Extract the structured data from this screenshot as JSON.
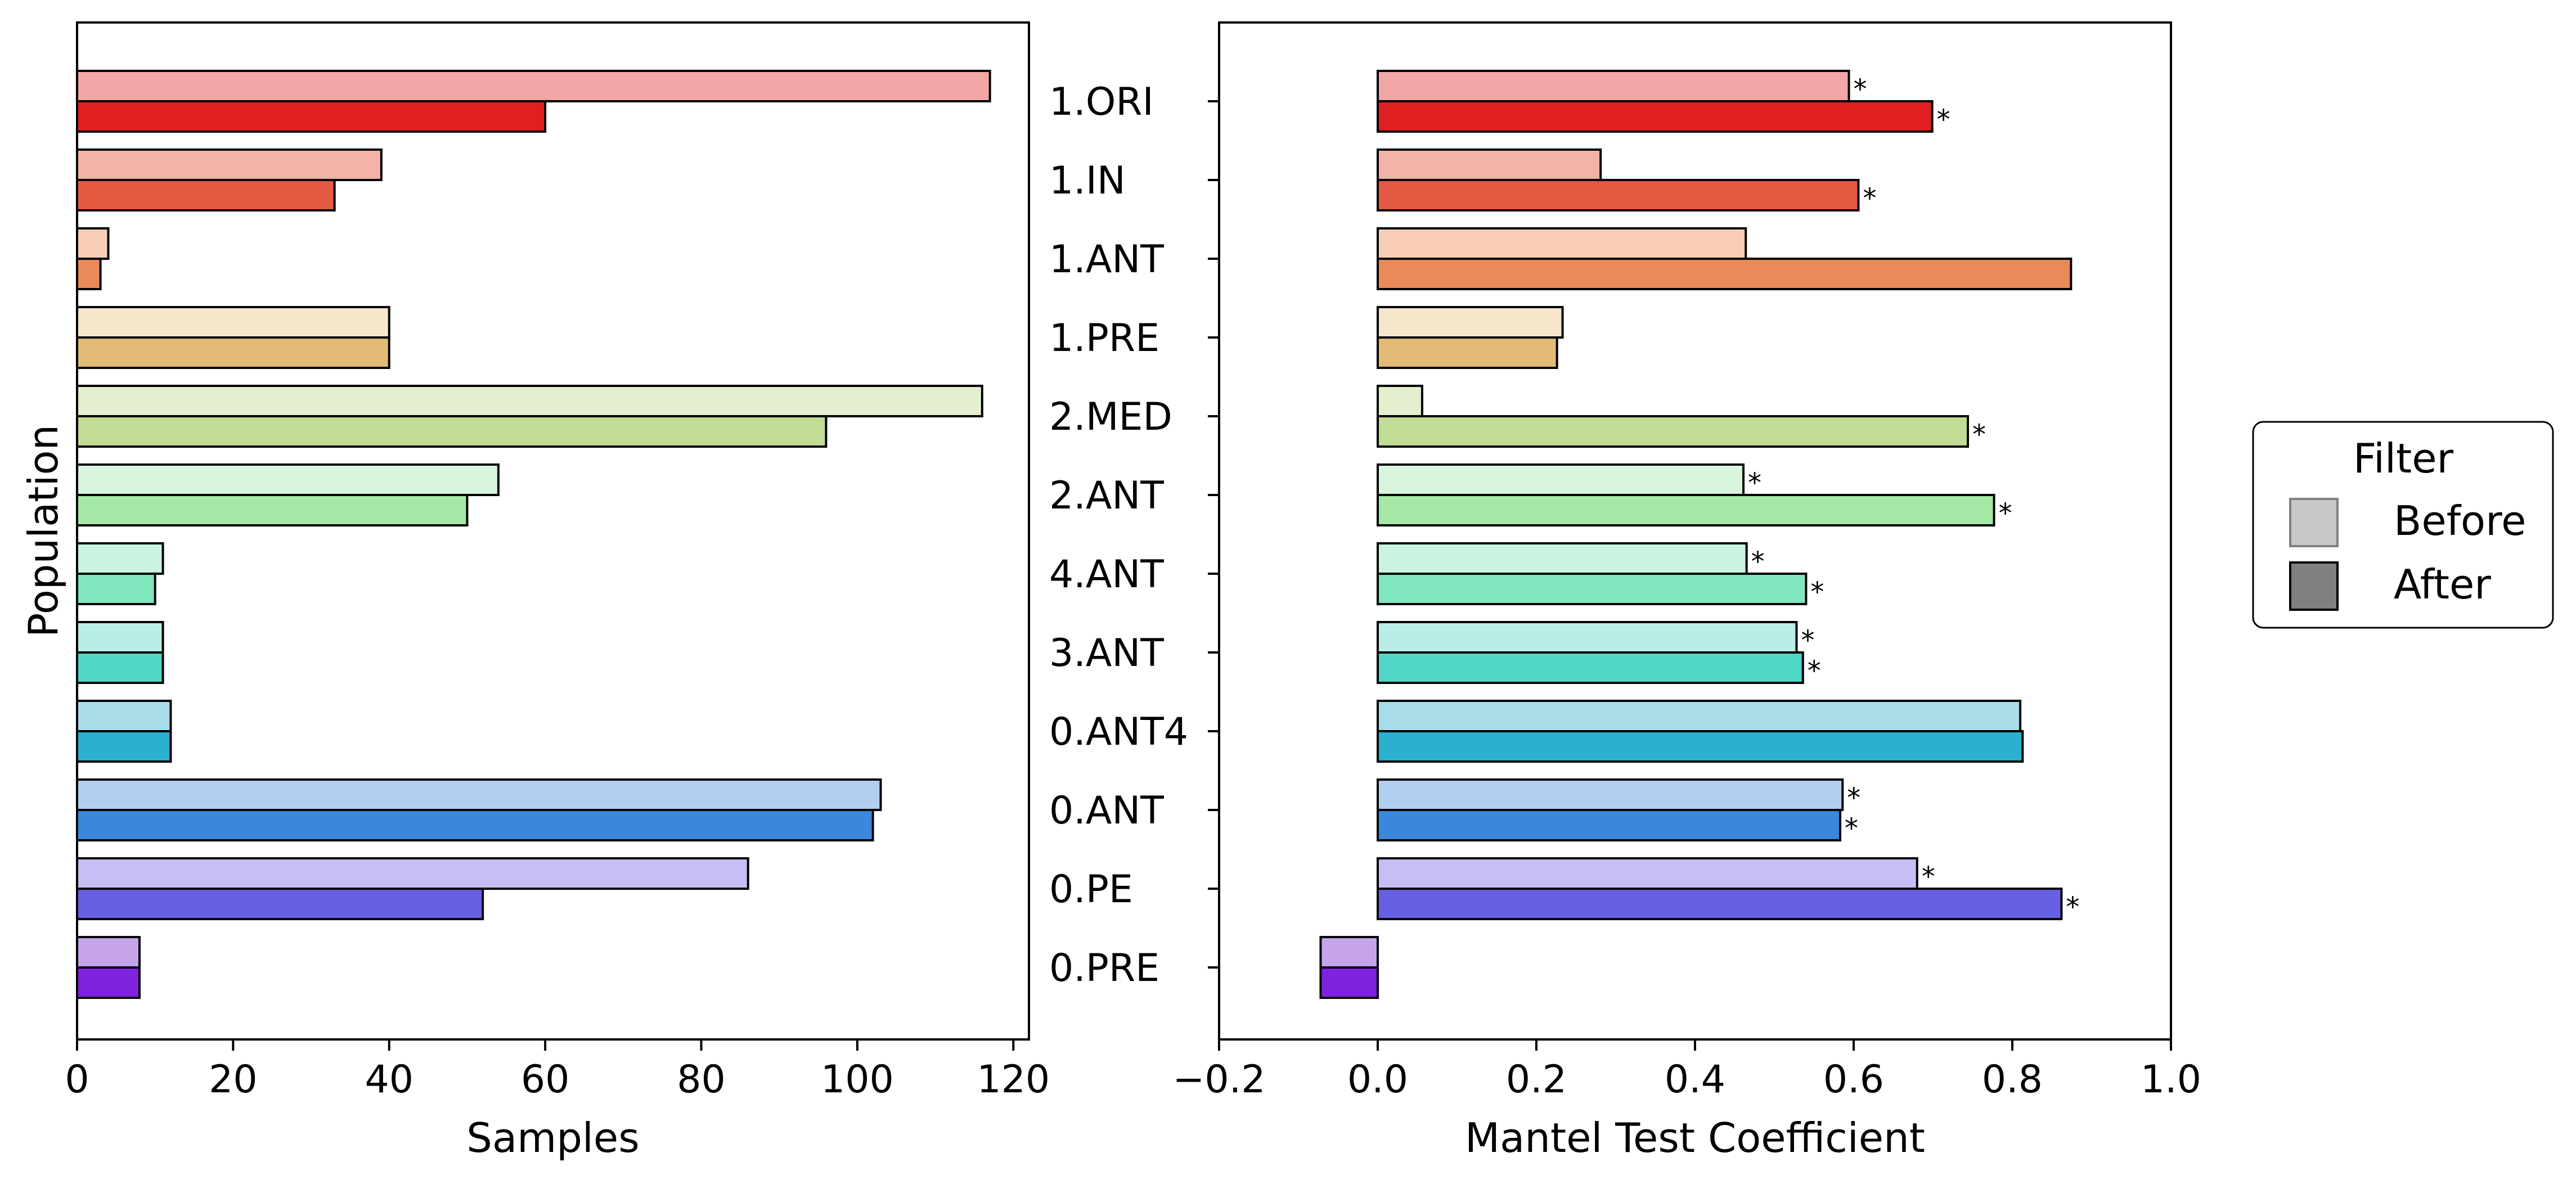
{
  "chart_data": {
    "type": "bar",
    "orientation": "horizontal",
    "categories": [
      "1.ORI",
      "1.IN",
      "1.ANT",
      "1.PRE",
      "2.MED",
      "2.ANT",
      "4.ANT",
      "3.ANT",
      "0.ANT4",
      "0.ANT",
      "0.PE",
      "0.PRE"
    ],
    "ylabel": "Population",
    "legend": {
      "title": "Filter",
      "placement": "right",
      "entries": [
        {
          "label": "Before",
          "color": "#c8c8c8"
        },
        {
          "label": "After",
          "color": "#808080"
        }
      ]
    },
    "colors": {
      "before": [
        "#f2a6a6",
        "#f3b3a9",
        "#f8cdb8",
        "#f6e6cc",
        "#e3efcf",
        "#d8f4dc",
        "#caf4e1",
        "#b8eee6",
        "#a9dde9",
        "#b2cff0",
        "#c5bff5",
        "#c6a4ea"
      ],
      "after": [
        "#e02020",
        "#e55a42",
        "#ea8a58",
        "#e2bb77",
        "#c0dc95",
        "#a5e8a6",
        "#7fe6bd",
        "#4fd6c4",
        "#2cb0cf",
        "#3b87dc",
        "#6860e4",
        "#7f22df"
      ]
    },
    "panels": [
      {
        "xlabel": "Samples",
        "xlim": [
          0,
          122
        ],
        "xticks": [
          "0",
          "20",
          "40",
          "60",
          "80",
          "100",
          "120"
        ],
        "xtick_values": [
          0,
          20,
          40,
          60,
          80,
          100,
          120
        ],
        "series": [
          {
            "name": "Before",
            "values": [
              117,
              39,
              4,
              40,
              116,
              54,
              11,
              11,
              12,
              103,
              86,
              8
            ]
          },
          {
            "name": "After",
            "values": [
              60,
              33,
              3,
              40,
              96,
              50,
              10,
              11,
              12,
              102,
              52,
              8
            ]
          }
        ]
      },
      {
        "xlabel": "Mantel Test Coefficient",
        "xlim": [
          -0.2,
          1.0
        ],
        "xticks": [
          "−0.2",
          "0.0",
          "0.2",
          "0.4",
          "0.6",
          "0.8",
          "1.0"
        ],
        "xtick_values": [
          -0.2,
          0,
          0.2,
          0.4,
          0.6,
          0.8,
          1.0
        ],
        "series": [
          {
            "name": "Before",
            "values": [
              0.594,
              0.281,
              0.464,
              0.233,
              0.056,
              0.461,
              0.465,
              0.528,
              0.81,
              0.586,
              0.68,
              -0.072
            ],
            "significant": [
              true,
              false,
              false,
              false,
              false,
              true,
              true,
              true,
              false,
              true,
              true,
              false
            ]
          },
          {
            "name": "After",
            "values": [
              0.699,
              0.606,
              0.874,
              0.226,
              0.744,
              0.777,
              0.54,
              0.536,
              0.813,
              0.583,
              0.862,
              -0.072
            ],
            "significant": [
              true,
              true,
              false,
              false,
              true,
              true,
              true,
              true,
              false,
              true,
              true,
              false
            ]
          }
        ],
        "significance_marker": "*"
      }
    ]
  }
}
